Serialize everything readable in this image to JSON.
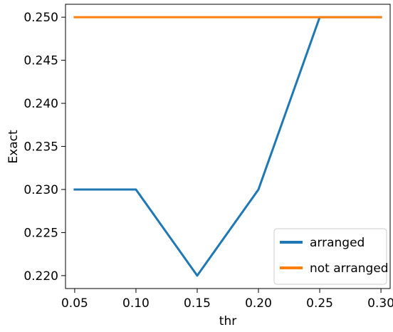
{
  "chart_data": {
    "type": "line",
    "title": "",
    "xlabel": "thr",
    "ylabel": "Exact",
    "x": [
      0.05,
      0.1,
      0.15,
      0.2,
      0.25,
      0.3
    ],
    "xticks": [
      "0.05",
      "0.10",
      "0.15",
      "0.20",
      "0.25",
      "0.30"
    ],
    "yticks": [
      "0.220",
      "0.225",
      "0.230",
      "0.235",
      "0.240",
      "0.245",
      "0.250"
    ],
    "ytick_values": [
      0.22,
      0.225,
      0.23,
      0.235,
      0.24,
      0.245,
      0.25
    ],
    "xlim": [
      0.0425,
      0.3075
    ],
    "ylim": [
      0.2185,
      0.2515
    ],
    "grid": false,
    "legend_position": "lower-right",
    "series": [
      {
        "name": "arranged",
        "color": "#1f77b4",
        "values": [
          0.23,
          0.23,
          0.22,
          0.23,
          0.25,
          0.25
        ]
      },
      {
        "name": "not arranged",
        "color": "#ff7f0e",
        "values": [
          0.25,
          0.25,
          0.25,
          0.25,
          0.25,
          0.25
        ]
      }
    ]
  }
}
